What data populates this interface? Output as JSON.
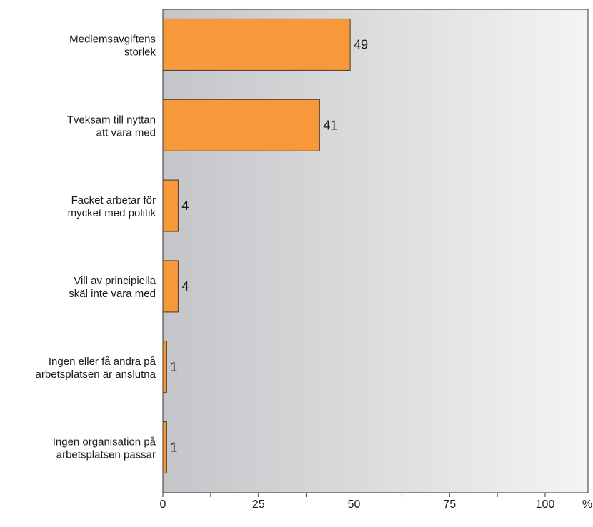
{
  "chart_data": {
    "type": "bar",
    "orientation": "horizontal",
    "categories": [
      [
        "Medlemsavgiftens",
        "storlek"
      ],
      [
        "Tveksam till nyttan",
        "att vara med"
      ],
      [
        "Facket arbetar för",
        "mycket med politik"
      ],
      [
        "Vill av principiella",
        "skäl inte vara med"
      ],
      [
        "Ingen eller få andra på",
        "arbetsplatsen är anslutna"
      ],
      [
        "Ingen organisation på",
        "arbetsplatsen passar"
      ]
    ],
    "values": [
      49,
      41,
      4,
      4,
      1,
      1
    ],
    "xlim": [
      0,
      100
    ],
    "xticks": [
      0,
      25,
      50,
      75,
      100
    ],
    "unit_label": "%",
    "bar_color": "#f7993a",
    "bar_edge_color": "#4a3a2a",
    "plot_bg_left": "#c4c5c8",
    "plot_bg_right": "#f4f4f5",
    "axis_color": "#333333",
    "grid": false
  }
}
